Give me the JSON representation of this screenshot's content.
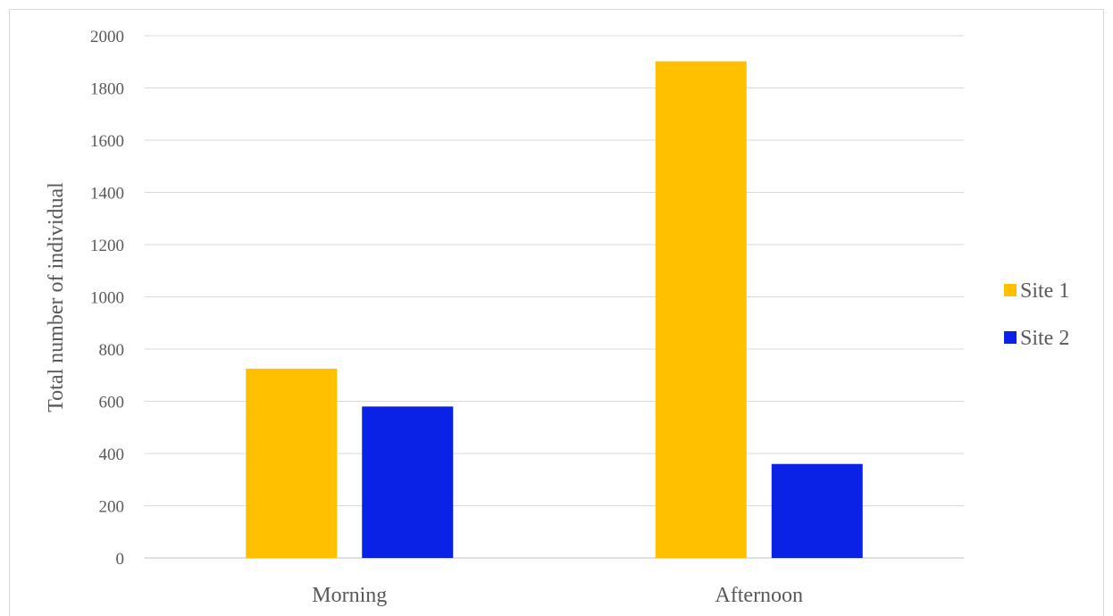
{
  "chart_data": {
    "type": "bar",
    "title": "",
    "xlabel": "",
    "ylabel": "Total number of individual",
    "categories": [
      "Morning",
      "Afternoon"
    ],
    "series": [
      {
        "name": "Site 1",
        "color": "#FFC000",
        "values": [
          725,
          1902
        ]
      },
      {
        "name": "Site 2",
        "color": "#0A22E6",
        "values": [
          580,
          360
        ]
      }
    ],
    "ylim": [
      0,
      2000
    ],
    "yticks": [
      "0",
      "200",
      "400",
      "600",
      "800",
      "1000",
      "1200",
      "1400",
      "1600",
      "1800",
      "2000"
    ],
    "grid": true,
    "legend_position": "right"
  }
}
